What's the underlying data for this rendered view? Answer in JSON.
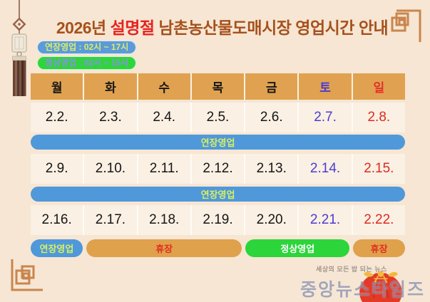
{
  "title": {
    "part1": "2026년 ",
    "highlight": "설명절",
    "part2": " 남촌농산물도매시장 영업시간 안내",
    "color_main": "#A6511D",
    "color_highlight": "#E52520"
  },
  "legend": {
    "extended": {
      "label": "연장영업 : 02시 ~ 17시",
      "bg": "#5B9BD8",
      "text_color": "#DCEC67"
    },
    "normal": {
      "label": "정상영업 : 02시 ~ 15시",
      "bg": "#2FD53C",
      "text_color": "#8A8FE6"
    }
  },
  "calendar": {
    "header_bg": "#E0A250",
    "weekdays": [
      {
        "label": "월",
        "color": "#161616"
      },
      {
        "label": "화",
        "color": "#161616"
      },
      {
        "label": "수",
        "color": "#161616"
      },
      {
        "label": "목",
        "color": "#161616"
      },
      {
        "label": "금",
        "color": "#161616"
      },
      {
        "label": "토",
        "color": "#4B3BD2"
      },
      {
        "label": "일",
        "color": "#E4302A"
      }
    ],
    "weeks": [
      {
        "dates": [
          {
            "label": "2.2.",
            "color": "#161616"
          },
          {
            "label": "2.3.",
            "color": "#161616"
          },
          {
            "label": "2.4.",
            "color": "#161616"
          },
          {
            "label": "2.5.",
            "color": "#161616"
          },
          {
            "label": "2.6.",
            "color": "#161616"
          },
          {
            "label": "2.7.",
            "color": "#4B3BD2"
          },
          {
            "label": "2.8.",
            "color": "#DC2B22"
          }
        ],
        "bars": [
          {
            "label": "연장영업",
            "span": 7,
            "bg": "#4F98DA",
            "text_color": "#D8EF5F"
          }
        ]
      },
      {
        "dates": [
          {
            "label": "2.9.",
            "color": "#161616"
          },
          {
            "label": "2.10.",
            "color": "#161616"
          },
          {
            "label": "2.11.",
            "color": "#161616"
          },
          {
            "label": "2.12.",
            "color": "#161616"
          },
          {
            "label": "2.13.",
            "color": "#161616"
          },
          {
            "label": "2.14.",
            "color": "#4B3BD2"
          },
          {
            "label": "2.15.",
            "color": "#DC2B22"
          }
        ],
        "bars": [
          {
            "label": "연장영업",
            "span": 7,
            "bg": "#4F98DA",
            "text_color": "#D8EF5F"
          }
        ]
      },
      {
        "dates": [
          {
            "label": "2.16.",
            "color": "#161616"
          },
          {
            "label": "2.17.",
            "color": "#161616"
          },
          {
            "label": "2.18.",
            "color": "#161616"
          },
          {
            "label": "2.19.",
            "color": "#161616"
          },
          {
            "label": "2.20.",
            "color": "#161616"
          },
          {
            "label": "2.21.",
            "color": "#4B3BD2"
          },
          {
            "label": "2.22.",
            "color": "#DC2B22"
          }
        ],
        "bars": [
          {
            "label": "연장영업",
            "span": 1,
            "bg": "#4F98DA",
            "text_color": "#D8EF5F"
          },
          {
            "label": "휴장",
            "span": 3,
            "bg": "#DFA14C",
            "text_color": "#E0301E"
          },
          {
            "label": "정상영업",
            "span": 2,
            "bg": "#2BD53A",
            "text_color": "#FFFFFF"
          },
          {
            "label": "휴장",
            "span": 1,
            "bg": "#DFA14C",
            "text_color": "#E0301E"
          }
        ]
      }
    ]
  },
  "watermark": {
    "tagline": "세상의 모든 밥 되는 뉴스",
    "logo": "중앙뉴스타임즈"
  },
  "icons": {
    "norigae": "korean-tassel-ornament",
    "corner_top_right": "lattice-corner-ornament",
    "corner_bottom_left": "lattice-corner-ornament",
    "pouch": "fortune-pouch-icon"
  }
}
